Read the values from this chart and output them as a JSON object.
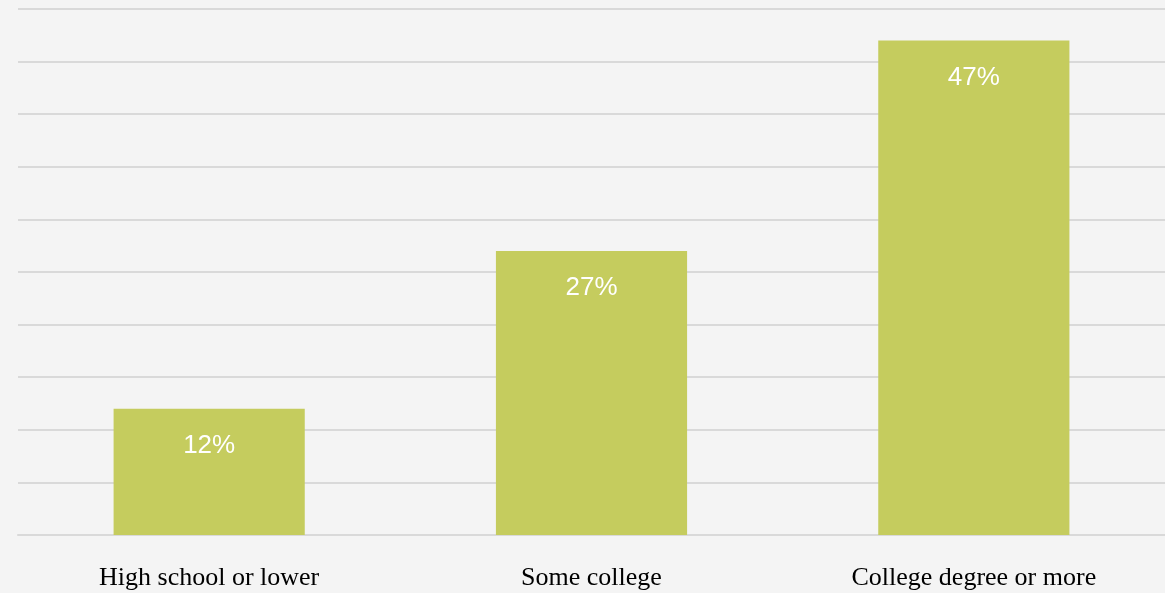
{
  "chart_data": {
    "type": "bar",
    "categories": [
      "High school or lower",
      "Some college",
      "College degree or more"
    ],
    "values": [
      12,
      27,
      47
    ],
    "value_labels": [
      "12%",
      "27%",
      "47%"
    ],
    "color": "#c5cc5e",
    "ylim": [
      0,
      50
    ],
    "yticks": [
      0,
      5,
      10,
      15,
      20,
      25,
      30,
      35,
      40,
      45,
      50
    ],
    "grid": "y",
    "tick_labels": "x"
  }
}
